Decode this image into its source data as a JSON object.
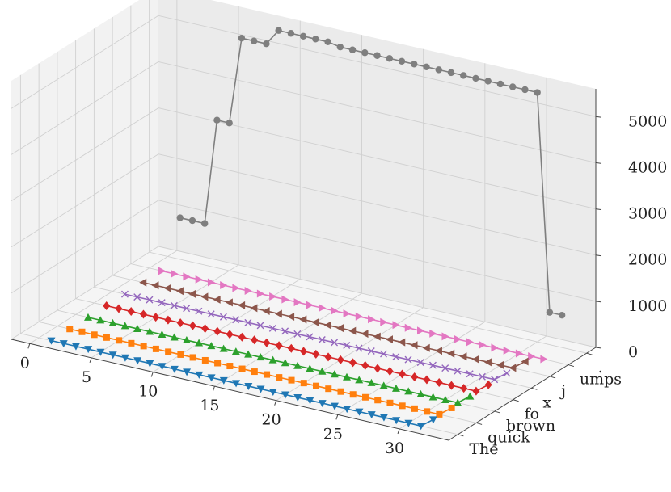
{
  "chart_data": {
    "type": "line",
    "projection": "3d",
    "title": "",
    "xlabel": "",
    "ylabel": "",
    "zlabel": "",
    "grid": true,
    "x": [
      1,
      2,
      3,
      4,
      5,
      6,
      7,
      8,
      9,
      10,
      11,
      12,
      13,
      14,
      15,
      16,
      17,
      18,
      19,
      20,
      21,
      22,
      23,
      24,
      25,
      26,
      27,
      28,
      29,
      30,
      31,
      32
    ],
    "x_ticks": [
      "0",
      "5",
      "10",
      "15",
      "20",
      "25",
      "30"
    ],
    "x_tick_values": [
      0,
      5,
      10,
      15,
      20,
      25,
      30
    ],
    "xlim": [
      -1.5,
      34
    ],
    "y_ticks": [
      "The",
      "quick",
      "brown",
      "fo",
      "x",
      "j",
      "umps",
      "."
    ],
    "z_ticks": [
      "0",
      "1000",
      "2000",
      "3000",
      "4000",
      "5000"
    ],
    "z_tick_values": [
      0,
      1000,
      2000,
      3000,
      4000,
      5000
    ],
    "zlim": [
      0,
      5600
    ],
    "series": [
      {
        "y_index": 0,
        "color": "#1f77b4",
        "marker": "triangle-down",
        "values": [
          0,
          0,
          0,
          0,
          0,
          0,
          0,
          0,
          0,
          0,
          0,
          0,
          0,
          0,
          0,
          0,
          0,
          0,
          0,
          0,
          0,
          0,
          0,
          0,
          0,
          0,
          0,
          0,
          0,
          0,
          0,
          200
        ]
      },
      {
        "y_index": 1,
        "color": "#ff7f0e",
        "marker": "square",
        "values": [
          0,
          0,
          0,
          0,
          0,
          0,
          0,
          0,
          0,
          0,
          0,
          0,
          0,
          0,
          0,
          0,
          0,
          0,
          0,
          0,
          0,
          0,
          0,
          0,
          0,
          0,
          0,
          0,
          0,
          0,
          0,
          200
        ]
      },
      {
        "y_index": 2,
        "color": "#2ca02c",
        "marker": "triangle-up",
        "values": [
          0,
          0,
          0,
          0,
          0,
          0,
          0,
          0,
          0,
          0,
          0,
          0,
          0,
          0,
          0,
          0,
          0,
          0,
          0,
          0,
          0,
          0,
          0,
          0,
          0,
          0,
          0,
          0,
          0,
          0,
          0,
          200
        ]
      },
      {
        "y_index": 3,
        "color": "#d62728",
        "marker": "diamond",
        "values": [
          0,
          0,
          0,
          0,
          0,
          0,
          0,
          0,
          0,
          0,
          0,
          0,
          0,
          0,
          0,
          0,
          0,
          0,
          0,
          0,
          0,
          0,
          0,
          0,
          0,
          0,
          0,
          0,
          0,
          0,
          0,
          200
        ]
      },
      {
        "y_index": 4,
        "color": "#9467bd",
        "marker": "x",
        "values": [
          0,
          0,
          0,
          0,
          0,
          0,
          0,
          0,
          0,
          0,
          0,
          0,
          0,
          0,
          0,
          0,
          0,
          0,
          0,
          0,
          0,
          0,
          0,
          0,
          0,
          0,
          0,
          0,
          0,
          0,
          0,
          200
        ]
      },
      {
        "y_index": 5,
        "color": "#8c564b",
        "marker": "triangle-left",
        "values": [
          0,
          0,
          0,
          0,
          0,
          0,
          0,
          0,
          0,
          0,
          0,
          0,
          0,
          0,
          0,
          0,
          0,
          0,
          0,
          0,
          0,
          0,
          0,
          0,
          0,
          0,
          0,
          0,
          0,
          0,
          0,
          200
        ]
      },
      {
        "y_index": 6,
        "color": "#e377c2",
        "marker": "triangle-right",
        "values": [
          0,
          0,
          0,
          0,
          0,
          0,
          0,
          0,
          0,
          0,
          0,
          0,
          0,
          0,
          0,
          0,
          0,
          0,
          0,
          0,
          0,
          0,
          0,
          0,
          0,
          0,
          0,
          0,
          0,
          0,
          0,
          0
        ]
      },
      {
        "y_index": 7,
        "color": "#7f7f7f",
        "marker": "circle",
        "values": [
          900,
          900,
          900,
          3200,
          3200,
          5100,
          5100,
          5100,
          5450,
          5450,
          5450,
          5450,
          5450,
          5400,
          5400,
          5400,
          5400,
          5400,
          5400,
          5400,
          5400,
          5400,
          5400,
          5400,
          5400,
          5400,
          5400,
          5400,
          5400,
          5400,
          700,
          700
        ]
      }
    ]
  }
}
